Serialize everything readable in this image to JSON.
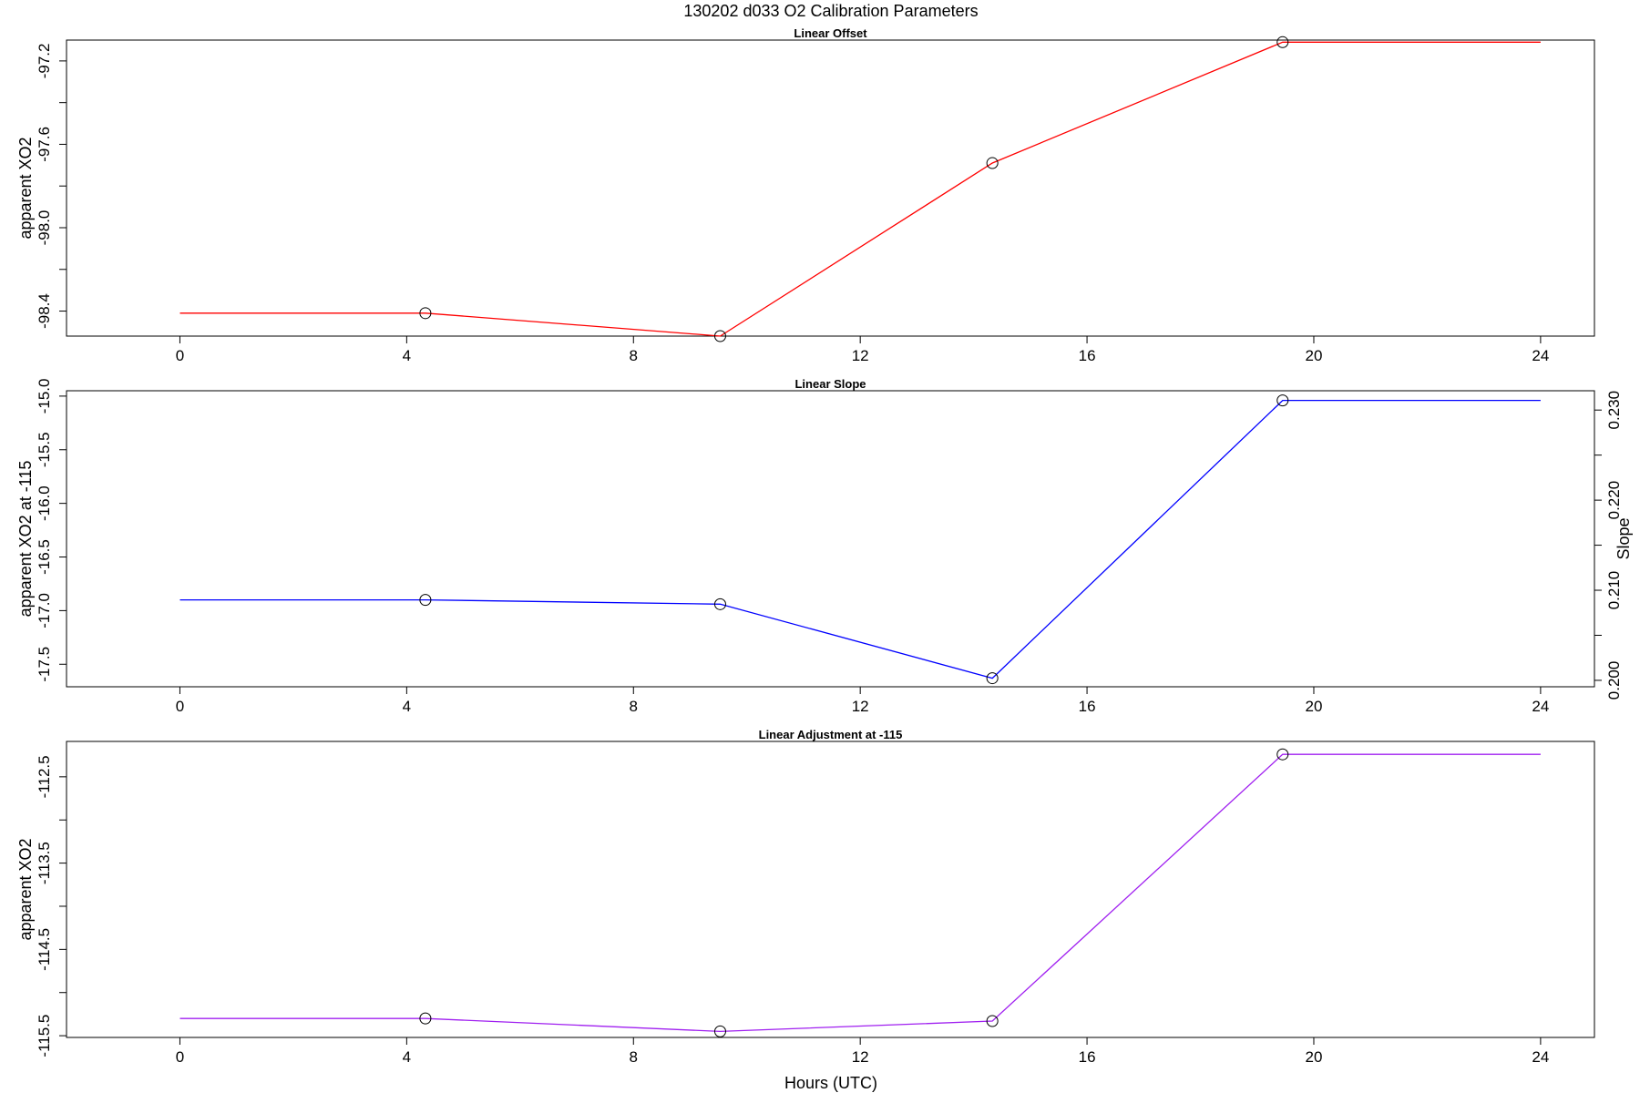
{
  "figure": {
    "title": "130202   d033   O2 Calibration Parameters",
    "xlabel": "Hours (UTC)"
  },
  "chart_data": [
    {
      "type": "line",
      "title": "Linear Offset",
      "xlabel": "",
      "ylabel": "apparent XO2",
      "xlim": [
        -2,
        24.95
      ],
      "ylim": [
        -98.52,
        -97.1
      ],
      "xticks": [
        0,
        4,
        8,
        12,
        16,
        20,
        24
      ],
      "yticks": [
        -98.4,
        -98.2,
        -98.0,
        -97.8,
        -97.6,
        -97.4,
        -97.2
      ],
      "ytick_labels": [
        "-98.4",
        "",
        "-98.0",
        "",
        "-97.6",
        "",
        "-97.2"
      ],
      "grid": false,
      "series": [
        {
          "color": "#ff0000",
          "x": [
            0,
            4.33,
            9.53,
            14.33,
            19.45,
            24
          ],
          "y": [
            -98.41,
            -98.41,
            -98.52,
            -97.69,
            -97.11,
            -97.11
          ],
          "markers": [
            false,
            true,
            true,
            true,
            true,
            false
          ]
        }
      ]
    },
    {
      "type": "line",
      "title": "Linear Slope",
      "xlabel": "",
      "ylabel": "apparent XO2 at -115",
      "ylabel_right": "Slope",
      "xlim": [
        -2,
        24.95
      ],
      "ylim": [
        -17.71,
        -14.95
      ],
      "xticks": [
        0,
        4,
        8,
        12,
        16,
        20,
        24
      ],
      "yticks": [
        -17.5,
        -17.0,
        -16.5,
        -16.0,
        -15.5,
        -15.0
      ],
      "ytick_labels": [
        "-17.5",
        "-17.0",
        "-16.5",
        "-16.0",
        "-15.5",
        "-15.0"
      ],
      "right_axis": {
        "ticks": [
          0.2,
          0.205,
          0.21,
          0.215,
          0.22,
          0.225,
          0.23
        ],
        "tick_labels": [
          "0.200",
          "",
          "0.210",
          "",
          "0.220",
          "",
          "0.230"
        ],
        "left_at_0200": -17.65,
        "left_at_0230": -15.13
      },
      "grid": false,
      "series": [
        {
          "color": "#0000ff",
          "x": [
            0,
            4.33,
            9.53,
            14.33,
            19.45,
            24
          ],
          "y": [
            -16.9,
            -16.9,
            -16.94,
            -17.63,
            -15.04,
            -15.04
          ],
          "markers": [
            false,
            true,
            true,
            true,
            true,
            false
          ]
        }
      ]
    },
    {
      "type": "line",
      "title": "Linear Adjustment at -115",
      "xlabel": "Hours (UTC)",
      "ylabel": "apparent XO2",
      "xlim": [
        -2,
        24.95
      ],
      "ylim": [
        -115.52,
        -112.09
      ],
      "xticks": [
        0,
        4,
        8,
        12,
        16,
        20,
        24
      ],
      "yticks": [
        -115.5,
        -115.0,
        -114.5,
        -114.0,
        -113.5,
        -113.0,
        -112.5
      ],
      "ytick_labels": [
        "-115.5",
        "",
        "-114.5",
        "",
        "-113.5",
        "",
        "-112.5"
      ],
      "grid": false,
      "series": [
        {
          "color": "#a020f0",
          "x": [
            0,
            4.33,
            9.53,
            14.33,
            19.45,
            24
          ],
          "y": [
            -115.3,
            -115.3,
            -115.45,
            -115.33,
            -112.24,
            -112.24
          ],
          "markers": [
            false,
            true,
            true,
            true,
            true,
            false
          ]
        }
      ]
    }
  ]
}
